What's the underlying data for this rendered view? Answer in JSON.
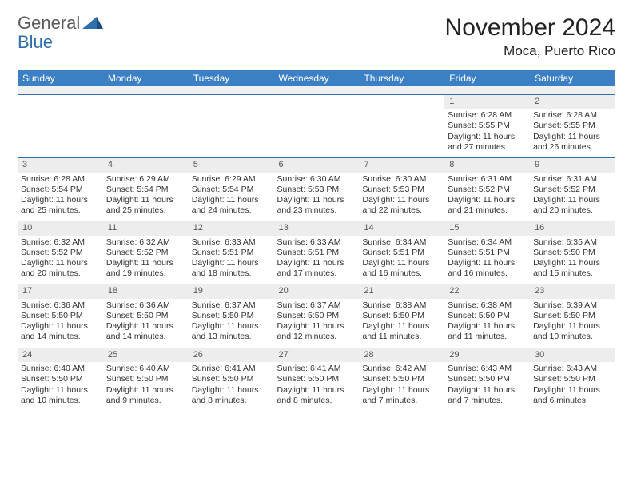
{
  "logo": {
    "part1": "General",
    "part2": "Blue"
  },
  "title": "November 2024",
  "location": "Moca, Puerto Rico",
  "colors": {
    "header_bg": "#3b7fc4",
    "header_fg": "#ffffff",
    "rule": "#2f6fad",
    "daynum_bg": "#ededed",
    "text": "#333333",
    "logo_gray": "#5a5a5a",
    "logo_blue": "#2f6fad"
  },
  "day_headers": [
    "Sunday",
    "Monday",
    "Tuesday",
    "Wednesday",
    "Thursday",
    "Friday",
    "Saturday"
  ],
  "layout": {
    "first_weekday_index": 5,
    "days_in_month": 30
  },
  "days": {
    "1": {
      "sunrise": "6:28 AM",
      "sunset": "5:55 PM",
      "daylight": "11 hours and 27 minutes."
    },
    "2": {
      "sunrise": "6:28 AM",
      "sunset": "5:55 PM",
      "daylight": "11 hours and 26 minutes."
    },
    "3": {
      "sunrise": "6:28 AM",
      "sunset": "5:54 PM",
      "daylight": "11 hours and 25 minutes."
    },
    "4": {
      "sunrise": "6:29 AM",
      "sunset": "5:54 PM",
      "daylight": "11 hours and 25 minutes."
    },
    "5": {
      "sunrise": "6:29 AM",
      "sunset": "5:54 PM",
      "daylight": "11 hours and 24 minutes."
    },
    "6": {
      "sunrise": "6:30 AM",
      "sunset": "5:53 PM",
      "daylight": "11 hours and 23 minutes."
    },
    "7": {
      "sunrise": "6:30 AM",
      "sunset": "5:53 PM",
      "daylight": "11 hours and 22 minutes."
    },
    "8": {
      "sunrise": "6:31 AM",
      "sunset": "5:52 PM",
      "daylight": "11 hours and 21 minutes."
    },
    "9": {
      "sunrise": "6:31 AM",
      "sunset": "5:52 PM",
      "daylight": "11 hours and 20 minutes."
    },
    "10": {
      "sunrise": "6:32 AM",
      "sunset": "5:52 PM",
      "daylight": "11 hours and 20 minutes."
    },
    "11": {
      "sunrise": "6:32 AM",
      "sunset": "5:52 PM",
      "daylight": "11 hours and 19 minutes."
    },
    "12": {
      "sunrise": "6:33 AM",
      "sunset": "5:51 PM",
      "daylight": "11 hours and 18 minutes."
    },
    "13": {
      "sunrise": "6:33 AM",
      "sunset": "5:51 PM",
      "daylight": "11 hours and 17 minutes."
    },
    "14": {
      "sunrise": "6:34 AM",
      "sunset": "5:51 PM",
      "daylight": "11 hours and 16 minutes."
    },
    "15": {
      "sunrise": "6:34 AM",
      "sunset": "5:51 PM",
      "daylight": "11 hours and 16 minutes."
    },
    "16": {
      "sunrise": "6:35 AM",
      "sunset": "5:50 PM",
      "daylight": "11 hours and 15 minutes."
    },
    "17": {
      "sunrise": "6:36 AM",
      "sunset": "5:50 PM",
      "daylight": "11 hours and 14 minutes."
    },
    "18": {
      "sunrise": "6:36 AM",
      "sunset": "5:50 PM",
      "daylight": "11 hours and 14 minutes."
    },
    "19": {
      "sunrise": "6:37 AM",
      "sunset": "5:50 PM",
      "daylight": "11 hours and 13 minutes."
    },
    "20": {
      "sunrise": "6:37 AM",
      "sunset": "5:50 PM",
      "daylight": "11 hours and 12 minutes."
    },
    "21": {
      "sunrise": "6:38 AM",
      "sunset": "5:50 PM",
      "daylight": "11 hours and 11 minutes."
    },
    "22": {
      "sunrise": "6:38 AM",
      "sunset": "5:50 PM",
      "daylight": "11 hours and 11 minutes."
    },
    "23": {
      "sunrise": "6:39 AM",
      "sunset": "5:50 PM",
      "daylight": "11 hours and 10 minutes."
    },
    "24": {
      "sunrise": "6:40 AM",
      "sunset": "5:50 PM",
      "daylight": "11 hours and 10 minutes."
    },
    "25": {
      "sunrise": "6:40 AM",
      "sunset": "5:50 PM",
      "daylight": "11 hours and 9 minutes."
    },
    "26": {
      "sunrise": "6:41 AM",
      "sunset": "5:50 PM",
      "daylight": "11 hours and 8 minutes."
    },
    "27": {
      "sunrise": "6:41 AM",
      "sunset": "5:50 PM",
      "daylight": "11 hours and 8 minutes."
    },
    "28": {
      "sunrise": "6:42 AM",
      "sunset": "5:50 PM",
      "daylight": "11 hours and 7 minutes."
    },
    "29": {
      "sunrise": "6:43 AM",
      "sunset": "5:50 PM",
      "daylight": "11 hours and 7 minutes."
    },
    "30": {
      "sunrise": "6:43 AM",
      "sunset": "5:50 PM",
      "daylight": "11 hours and 6 minutes."
    }
  }
}
